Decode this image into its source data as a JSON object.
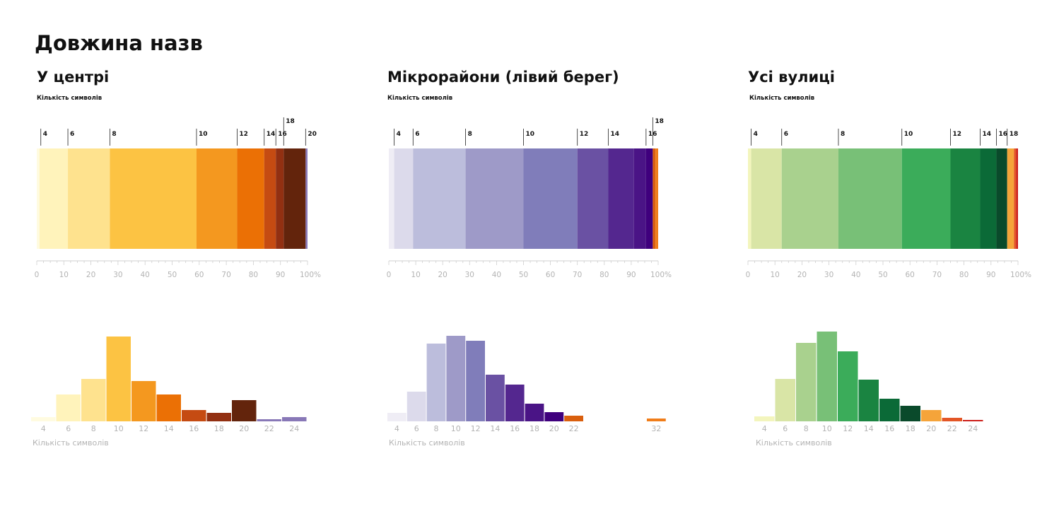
{
  "page": {
    "title": "Довжина назв"
  },
  "chart_data": [
    {
      "type": "bar",
      "subtype": "100%-stacked-bar",
      "title": "У центрі",
      "subtitle": "Кількість символів",
      "xlabel": "",
      "xlim": [
        0,
        100
      ],
      "x_ticks": [
        0,
        10,
        20,
        30,
        40,
        50,
        60,
        70,
        80,
        90,
        100
      ],
      "x_tick_labels": [
        "0",
        "10",
        "20",
        "30",
        "40",
        "50",
        "60",
        "70",
        "80",
        "90",
        "100%"
      ],
      "segments": [
        {
          "x0": 0.0,
          "x1": 1.0,
          "color": "#fffbe0"
        },
        {
          "x0": 1.0,
          "x1": 11.5,
          "color": "#fff3bb"
        },
        {
          "x0": 11.5,
          "x1": 27.0,
          "color": "#fee28e"
        },
        {
          "x0": 27.0,
          "x1": 59.0,
          "color": "#fcc343"
        },
        {
          "x0": 59.0,
          "x1": 74.0,
          "color": "#f4981f"
        },
        {
          "x0": 74.0,
          "x1": 84.0,
          "color": "#eb7005"
        },
        {
          "x0": 84.0,
          "x1": 88.3,
          "color": "#c54b12"
        },
        {
          "x0": 88.3,
          "x1": 91.2,
          "color": "#923012"
        },
        {
          "x0": 91.2,
          "x1": 99.3,
          "color": "#63240c"
        },
        {
          "x0": 99.3,
          "x1": 100.0,
          "color": "#8878b7"
        }
      ],
      "boundary_labels": [
        {
          "text": "4",
          "x": 1.5
        },
        {
          "text": "6",
          "x": 11.5
        },
        {
          "text": "8",
          "x": 27.0
        },
        {
          "text": "10",
          "x": 59.0
        },
        {
          "text": "12",
          "x": 74.0
        },
        {
          "text": "14",
          "x": 84.0
        },
        {
          "text": "16",
          "x": 88.3
        },
        {
          "text": "18",
          "x": 91.2,
          "raised": true
        },
        {
          "text": "20",
          "x": 99.3
        }
      ],
      "histogram": {
        "xlabel": "Кількість символів",
        "categories": [
          "4",
          "6",
          "8",
          "10",
          "12",
          "14",
          "16",
          "18",
          "20",
          "22",
          "24"
        ],
        "values": [
          6,
          38,
          60,
          120,
          57,
          38,
          16,
          12,
          30,
          3,
          6
        ],
        "colors": [
          "#fffbe0",
          "#fff3bb",
          "#fee28e",
          "#fcc343",
          "#f4981f",
          "#eb7005",
          "#c54b12",
          "#923012",
          "#63240c",
          "#8878b7",
          "#8878b7"
        ]
      }
    },
    {
      "type": "bar",
      "subtype": "100%-stacked-bar",
      "title": "Мікрорайони (лівий берег)",
      "subtitle": "Кількість символів",
      "xlabel": "",
      "xlim": [
        0,
        100
      ],
      "x_ticks": [
        0,
        10,
        20,
        30,
        40,
        50,
        60,
        70,
        80,
        90,
        100
      ],
      "x_tick_labels": [
        "0",
        "10",
        "20",
        "30",
        "40",
        "50",
        "60",
        "70",
        "80",
        "90",
        "100%"
      ],
      "segments": [
        {
          "x0": 0.0,
          "x1": 2.0,
          "color": "#efedf5"
        },
        {
          "x0": 2.0,
          "x1": 9.0,
          "color": "#dcdaeb"
        },
        {
          "x0": 9.0,
          "x1": 28.5,
          "color": "#bcbddc"
        },
        {
          "x0": 28.5,
          "x1": 50.0,
          "color": "#9e9ac8"
        },
        {
          "x0": 50.0,
          "x1": 70.0,
          "color": "#807dba"
        },
        {
          "x0": 70.0,
          "x1": 81.5,
          "color": "#6a51a3"
        },
        {
          "x0": 81.5,
          "x1": 91.0,
          "color": "#54278f"
        },
        {
          "x0": 91.0,
          "x1": 95.5,
          "color": "#4a1486"
        },
        {
          "x0": 95.5,
          "x1": 98.0,
          "color": "#3f007d"
        },
        {
          "x0": 98.0,
          "x1": 99.0,
          "color": "#d95f0e"
        },
        {
          "x0": 99.0,
          "x1": 100.0,
          "color": "#f07d1a"
        }
      ],
      "boundary_labels": [
        {
          "text": "4",
          "x": 2.0
        },
        {
          "text": "6",
          "x": 9.0
        },
        {
          "text": "8",
          "x": 28.5
        },
        {
          "text": "10",
          "x": 50.0
        },
        {
          "text": "12",
          "x": 70.0
        },
        {
          "text": "14",
          "x": 81.5
        },
        {
          "text": "16",
          "x": 95.5
        },
        {
          "text": "18",
          "x": 98.0,
          "raised": true
        }
      ],
      "histogram": {
        "xlabel": "Кількість символів",
        "categories": [
          "4",
          "6",
          "8",
          "10",
          "12",
          "14",
          "16",
          "18",
          "20",
          "22",
          "32"
        ],
        "values": [
          12,
          42,
          110,
          121,
          114,
          66,
          52,
          25,
          13,
          8,
          4
        ],
        "colors": [
          "#efedf5",
          "#dcdaeb",
          "#bcbddc",
          "#9e9ac8",
          "#807dba",
          "#6a51a3",
          "#54278f",
          "#4a1486",
          "#3f007d",
          "#d95f0e",
          "#f07d1a"
        ]
      }
    },
    {
      "type": "bar",
      "subtype": "100%-stacked-bar",
      "title": "Усі вулиці",
      "subtitle": "Кількість символів",
      "xlabel": "",
      "xlim": [
        0,
        100
      ],
      "x_ticks": [
        0,
        10,
        20,
        30,
        40,
        50,
        60,
        70,
        80,
        90,
        100
      ],
      "x_tick_labels": [
        "0",
        "10",
        "20",
        "30",
        "40",
        "50",
        "60",
        "70",
        "80",
        "90",
        "100%"
      ],
      "segments": [
        {
          "x0": 0.0,
          "x1": 1.2,
          "color": "#f3f5bd"
        },
        {
          "x0": 1.2,
          "x1": 12.5,
          "color": "#d9e5a6"
        },
        {
          "x0": 12.5,
          "x1": 33.5,
          "color": "#a9d18e"
        },
        {
          "x0": 33.5,
          "x1": 57.0,
          "color": "#78c077"
        },
        {
          "x0": 57.0,
          "x1": 75.0,
          "color": "#3bac5a"
        },
        {
          "x0": 75.0,
          "x1": 86.0,
          "color": "#1a8441"
        },
        {
          "x0": 86.0,
          "x1": 92.0,
          "color": "#0b6a37"
        },
        {
          "x0": 92.0,
          "x1": 96.0,
          "color": "#0a4a2b"
        },
        {
          "x0": 96.0,
          "x1": 98.5,
          "color": "#f5a43a"
        },
        {
          "x0": 98.5,
          "x1": 99.3,
          "color": "#e35626"
        },
        {
          "x0": 99.3,
          "x1": 100.0,
          "color": "#cc1f1a"
        }
      ],
      "boundary_labels": [
        {
          "text": "4",
          "x": 1.2
        },
        {
          "text": "6",
          "x": 12.5
        },
        {
          "text": "8",
          "x": 33.5
        },
        {
          "text": "10",
          "x": 57.0
        },
        {
          "text": "12",
          "x": 75.0
        },
        {
          "text": "14",
          "x": 86.0
        },
        {
          "text": "16",
          "x": 92.0
        },
        {
          "text": "18",
          "x": 96.0
        }
      ],
      "histogram": {
        "xlabel": "Кількість символів",
        "categories": [
          "4",
          "6",
          "8",
          "10",
          "12",
          "14",
          "16",
          "18",
          "20",
          "22",
          "24"
        ],
        "values": [
          7,
          60,
          111,
          127,
          99,
          59,
          32,
          22,
          16,
          5,
          2
        ],
        "colors": [
          "#f3f5bd",
          "#d9e5a6",
          "#a9d18e",
          "#78c077",
          "#3bac5a",
          "#1a8441",
          "#0b6a37",
          "#0a4a2b",
          "#f5a43a",
          "#e35626",
          "#cc1f1a"
        ]
      }
    }
  ]
}
